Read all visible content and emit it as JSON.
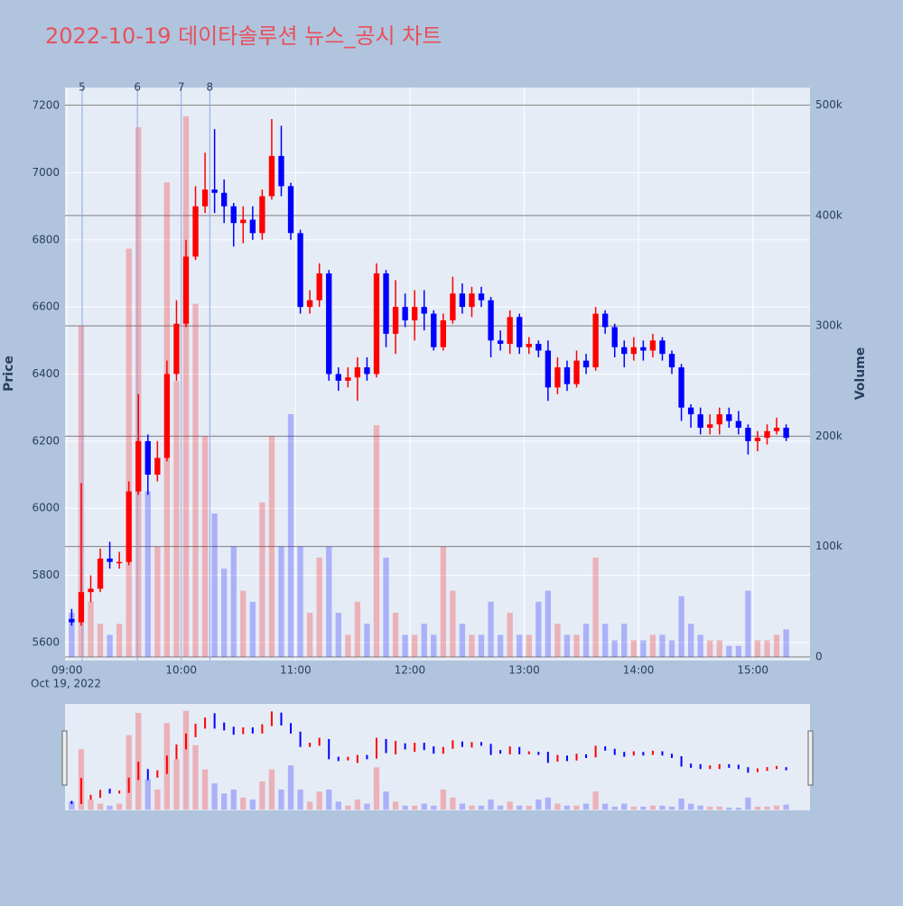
{
  "chart_data": {
    "type": "candlestick",
    "title": "2022-10-19 데이타솔루션 뉴스_공시 차트",
    "y_label": "Price",
    "y2_label": "Volume",
    "date_label": "Oct 19, 2022",
    "increasing_color": "#ff0000",
    "decreasing_color": "#0000ff",
    "xlim": [
      "08:59",
      "15:30"
    ],
    "xticks": [
      "09:00",
      "10:00",
      "11:00",
      "12:00",
      "13:00",
      "14:00",
      "15:00"
    ],
    "ylim": [
      5546,
      7254
    ],
    "yticks": [
      5600,
      5800,
      6000,
      6200,
      6400,
      6600,
      6800,
      7000,
      7200
    ],
    "y2lim": [
      -3300,
      516000
    ],
    "y2ticks": [
      0,
      {
        "value": 100000,
        "label": "100k"
      },
      {
        "value": 200000,
        "label": "200k"
      },
      {
        "value": 300000,
        "label": "300k"
      },
      {
        "value": 400000,
        "label": "400k"
      },
      {
        "value": 500000,
        "label": "500k"
      }
    ],
    "annotations": [
      {
        "label": "5",
        "x": "09:08"
      },
      {
        "label": "6",
        "x": "09:37"
      },
      {
        "label": "7",
        "x": "10:00"
      },
      {
        "label": "8",
        "x": "10:15"
      }
    ],
    "x": [
      "09:00",
      "09:05",
      "09:10",
      "09:15",
      "09:20",
      "09:25",
      "09:30",
      "09:35",
      "09:40",
      "09:45",
      "09:50",
      "09:55",
      "10:00",
      "10:05",
      "10:10",
      "10:15",
      "10:20",
      "10:25",
      "10:30",
      "10:35",
      "10:40",
      "10:45",
      "10:50",
      "10:55",
      "11:00",
      "11:05",
      "11:10",
      "11:15",
      "11:20",
      "11:25",
      "11:30",
      "11:35",
      "11:40",
      "11:45",
      "11:50",
      "11:55",
      "12:00",
      "12:05",
      "12:10",
      "12:15",
      "12:20",
      "12:25",
      "12:30",
      "12:35",
      "12:40",
      "12:45",
      "12:50",
      "12:55",
      "13:00",
      "13:05",
      "13:10",
      "13:15",
      "13:20",
      "13:25",
      "13:30",
      "13:35",
      "13:40",
      "13:45",
      "13:50",
      "13:55",
      "14:00",
      "14:05",
      "14:10",
      "14:15",
      "14:20",
      "14:25",
      "14:30",
      "14:35",
      "14:40",
      "14:45",
      "14:50",
      "14:55",
      "15:00",
      "15:05",
      "15:10",
      "15:15"
    ],
    "open": [
      5670,
      5660,
      5750,
      5760,
      5850,
      5840,
      5840,
      6050,
      6200,
      6100,
      6150,
      6400,
      6550,
      6750,
      6900,
      6950,
      6940,
      6900,
      6850,
      6860,
      6820,
      6930,
      7050,
      6960,
      6820,
      6600,
      6620,
      6700,
      6400,
      6380,
      6390,
      6420,
      6400,
      6700,
      6520,
      6600,
      6560,
      6600,
      6580,
      6480,
      6560,
      6640,
      6600,
      6640,
      6620,
      6500,
      6490,
      6570,
      6480,
      6490,
      6470,
      6360,
      6420,
      6370,
      6440,
      6420,
      6580,
      6540,
      6480,
      6460,
      6480,
      6470,
      6500,
      6460,
      6420,
      6300,
      6280,
      6240,
      6250,
      6280,
      6260,
      6240,
      6200,
      6210,
      6230,
      6240
    ],
    "high": [
      5700,
      6075,
      5800,
      5880,
      5900,
      5870,
      6080,
      6340,
      6220,
      6200,
      6440,
      6620,
      6800,
      6960,
      7060,
      7130,
      6980,
      6910,
      6900,
      6900,
      6950,
      7160,
      7140,
      6970,
      6830,
      6650,
      6730,
      6710,
      6420,
      6420,
      6450,
      6450,
      6730,
      6710,
      6680,
      6640,
      6650,
      6650,
      6590,
      6580,
      6690,
      6670,
      6660,
      6660,
      6630,
      6530,
      6590,
      6580,
      6510,
      6500,
      6500,
      6450,
      6440,
      6470,
      6460,
      6600,
      6590,
      6550,
      6500,
      6510,
      6500,
      6520,
      6510,
      6470,
      6430,
      6310,
      6300,
      6280,
      6300,
      6300,
      6290,
      6250,
      6230,
      6250,
      6270,
      6250
    ],
    "low": [
      5650,
      5650,
      5720,
      5750,
      5820,
      5820,
      5830,
      6040,
      6040,
      6080,
      6140,
      6380,
      6540,
      6740,
      6880,
      6880,
      6850,
      6780,
      6790,
      6800,
      6800,
      6920,
      6930,
      6800,
      6580,
      6580,
      6600,
      6380,
      6350,
      6360,
      6320,
      6380,
      6390,
      6480,
      6460,
      6540,
      6500,
      6530,
      6470,
      6470,
      6550,
      6580,
      6570,
      6600,
      6450,
      6470,
      6460,
      6460,
      6460,
      6450,
      6320,
      6340,
      6350,
      6360,
      6400,
      6410,
      6520,
      6450,
      6420,
      6440,
      6440,
      6450,
      6440,
      6400,
      6260,
      6240,
      6220,
      6220,
      6220,
      6240,
      6220,
      6160,
      6170,
      6190,
      6220,
      6200
    ],
    "close": [
      5660,
      5750,
      5760,
      5850,
      5840,
      5840,
      6050,
      6200,
      6100,
      6150,
      6400,
      6550,
      6750,
      6900,
      6950,
      6940,
      6900,
      6850,
      6860,
      6820,
      6930,
      7050,
      6960,
      6820,
      6600,
      6620,
      6700,
      6400,
      6380,
      6390,
      6420,
      6400,
      6700,
      6520,
      6600,
      6560,
      6600,
      6580,
      6480,
      6560,
      6640,
      6600,
      6640,
      6620,
      6500,
      6490,
      6570,
      6480,
      6490,
      6470,
      6360,
      6420,
      6370,
      6440,
      6420,
      6580,
      6540,
      6480,
      6460,
      6480,
      6470,
      6500,
      6460,
      6420,
      6300,
      6280,
      6240,
      6250,
      6280,
      6260,
      6240,
      6200,
      6210,
      6230,
      6240,
      6210
    ],
    "volume": [
      40000,
      300000,
      50000,
      30000,
      20000,
      30000,
      370000,
      480000,
      150000,
      100000,
      430000,
      250000,
      490000,
      320000,
      200000,
      130000,
      80000,
      100000,
      60000,
      50000,
      140000,
      200000,
      100000,
      220000,
      100000,
      40000,
      90000,
      100000,
      40000,
      20000,
      50000,
      30000,
      210000,
      90000,
      40000,
      20000,
      20000,
      30000,
      20000,
      100000,
      60000,
      30000,
      20000,
      20000,
      50000,
      20000,
      40000,
      20000,
      20000,
      50000,
      60000,
      30000,
      20000,
      20000,
      30000,
      90000,
      30000,
      15000,
      30000,
      15000,
      15000,
      20000,
      20000,
      15000,
      55000,
      30000,
      20000,
      15000,
      15000,
      10000,
      10000,
      60000,
      15000,
      15000,
      20000,
      25000
    ]
  }
}
